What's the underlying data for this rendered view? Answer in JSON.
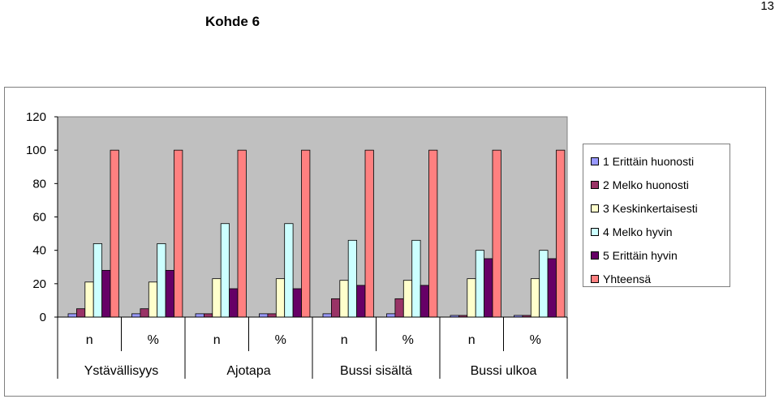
{
  "header": {
    "title": "Kohde 6",
    "page_number": "13"
  },
  "chart_data": {
    "type": "bar",
    "title": "",
    "xlabel": "",
    "ylabel": "",
    "ylim": [
      0,
      120
    ],
    "yticks": [
      "0",
      "20",
      "40",
      "60",
      "80",
      "100",
      "120"
    ],
    "grid": false,
    "legend_position": "right",
    "categories": [
      "n",
      "%",
      "n",
      "%",
      "n",
      "%",
      "n",
      "%"
    ],
    "groups": [
      "Ystävällisyys",
      "Ajotapa",
      "Bussi sisältä",
      "Bussi ulkoa"
    ],
    "series": [
      {
        "name": "1 Erittäin huonosti",
        "color": "#9999ff",
        "values": [
          2,
          2,
          2,
          2,
          2,
          2,
          1,
          1
        ]
      },
      {
        "name": "2 Melko huonosti",
        "color": "#993366",
        "values": [
          5,
          5,
          2,
          2,
          11,
          11,
          1,
          1
        ]
      },
      {
        "name": "3 Keskinkertaisesti",
        "color": "#ffffcc",
        "values": [
          21,
          21,
          23,
          23,
          22,
          22,
          23,
          23
        ]
      },
      {
        "name": "4 Melko hyvin",
        "color": "#ccffff",
        "values": [
          44,
          44,
          56,
          56,
          46,
          46,
          40,
          40
        ]
      },
      {
        "name": "5 Erittäin hyvin",
        "color": "#660066",
        "values": [
          28,
          28,
          17,
          17,
          19,
          19,
          35,
          35
        ]
      },
      {
        "name": "Yhteensä",
        "color": "#ff8080",
        "values": [
          100,
          100,
          100,
          100,
          100,
          100,
          100,
          100
        ]
      }
    ],
    "plot_background": "#c0c0c0"
  }
}
